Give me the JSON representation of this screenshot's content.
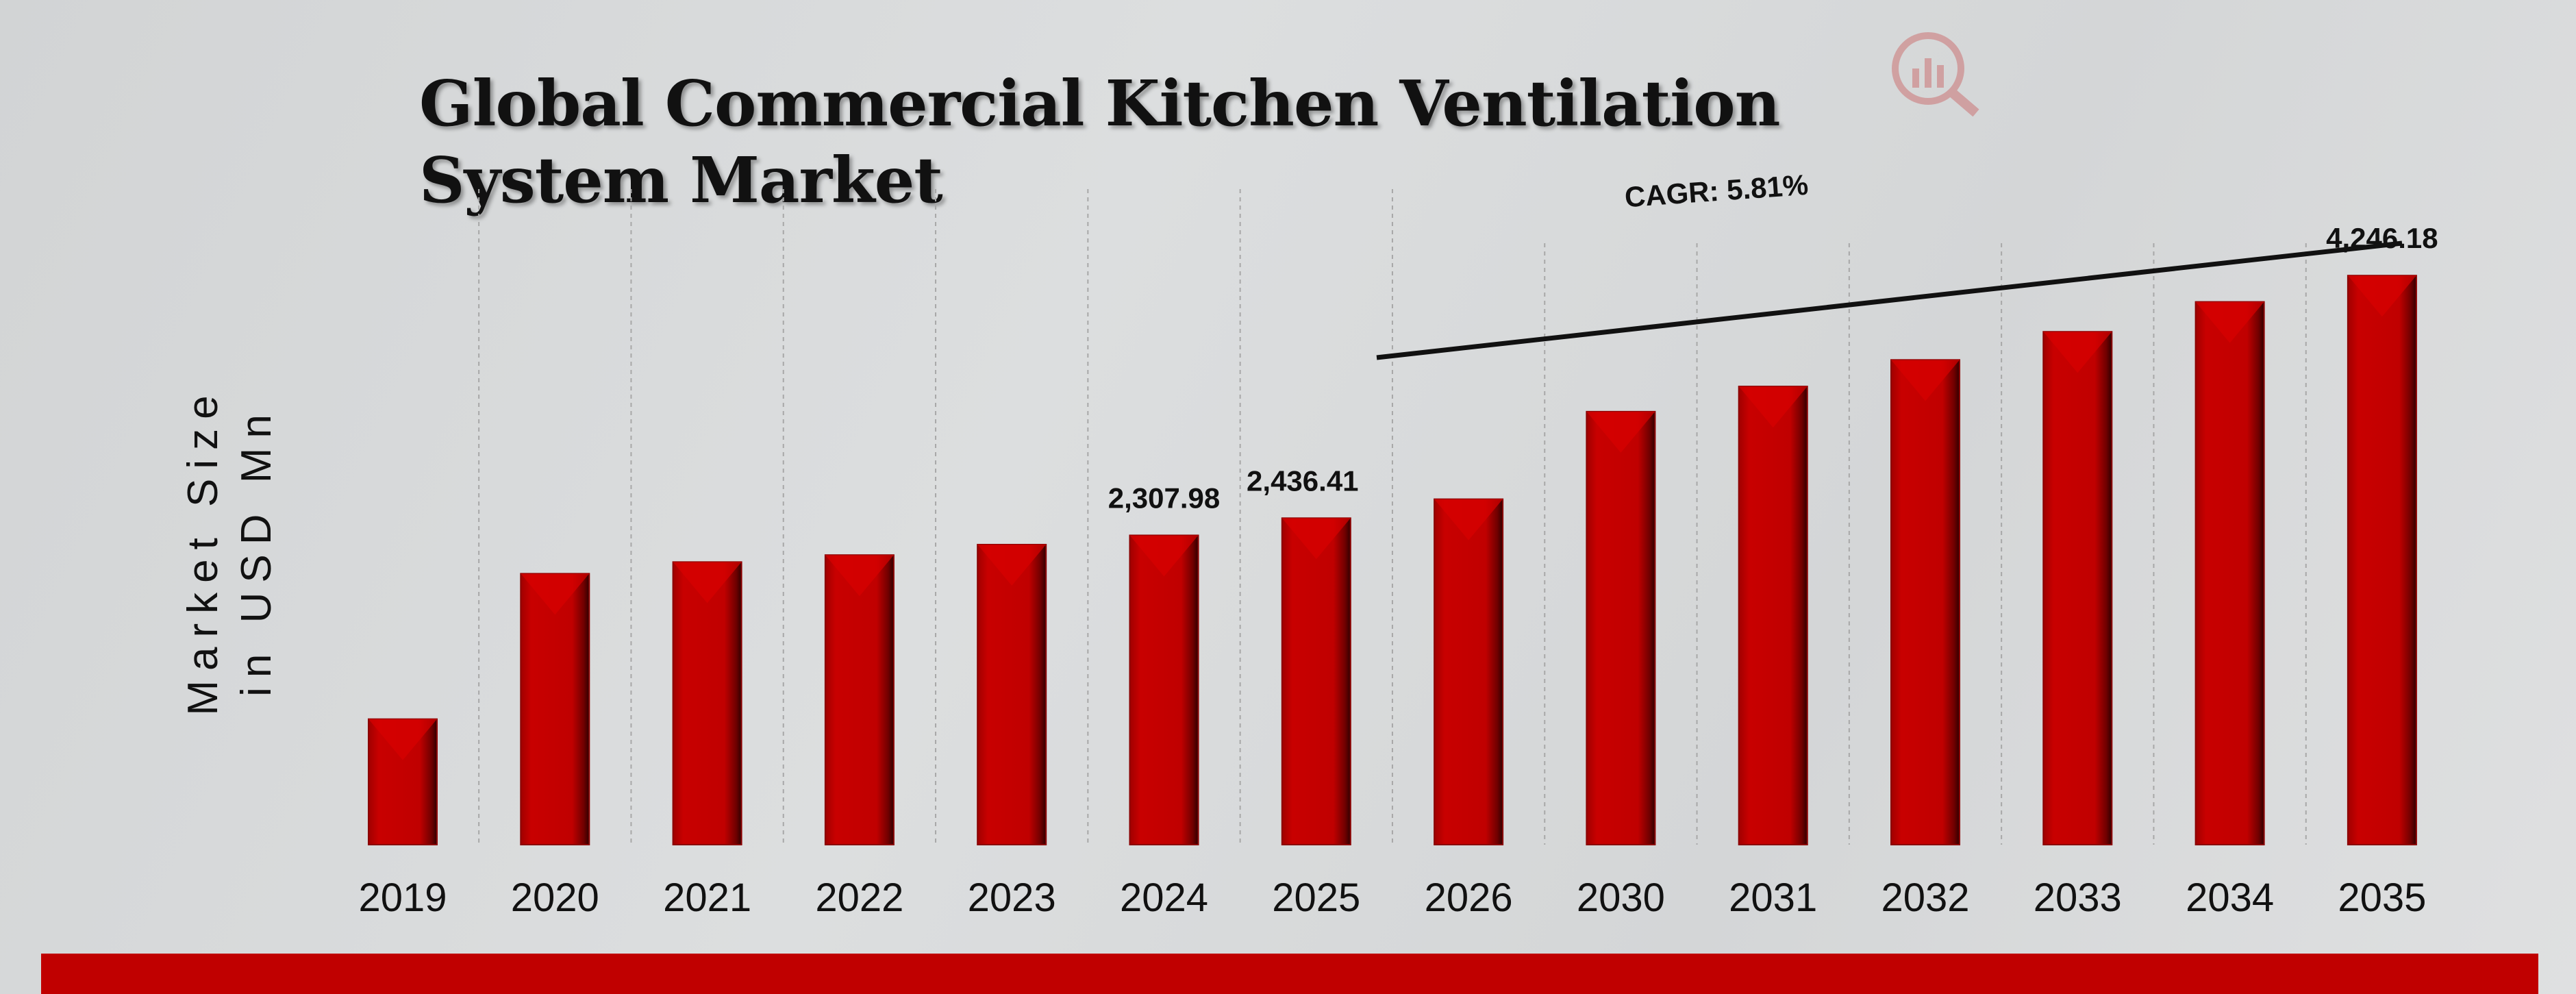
{
  "chart_data": {
    "type": "bar",
    "title": "Global Commercial Kitchen Ventilation System Market",
    "ylabel": "Market Size in USD Mn",
    "ylabel_lines": [
      "Market Size",
      "in USD Mn"
    ],
    "xlabel": "",
    "categories": [
      "2019",
      "2020",
      "2021",
      "2022",
      "2023",
      "2024",
      "2025",
      "2026",
      "2030",
      "2031",
      "2032",
      "2033",
      "2034",
      "2035"
    ],
    "values": [
      937,
      2022,
      2109,
      2161,
      2239,
      2307.98,
      2436.41,
      2578,
      3231,
      3419,
      3617,
      3827,
      4050,
      4246.18
    ],
    "data_labels": [
      {
        "category": "2024",
        "text": "2,307.98"
      },
      {
        "category": "2025",
        "text": "2,436.41"
      },
      {
        "category": "2035",
        "text": "4,246.18"
      }
    ],
    "annotation": "CAGR: 5.81%",
    "ylim": [
      0,
      4600
    ],
    "grid": "vertical dashed",
    "bar_color": "#c00000",
    "footer_color": "#c00000"
  }
}
